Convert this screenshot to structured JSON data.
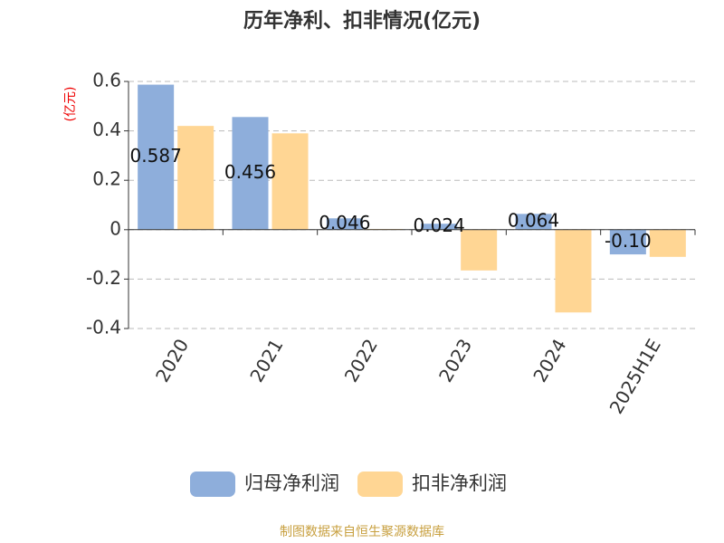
{
  "chart_data": {
    "type": "bar",
    "title": "历年净利、扣非情况(亿元)",
    "y_label": "(亿元)",
    "categories": [
      "2020",
      "2021",
      "2022",
      "2023",
      "2024",
      "2025H1E"
    ],
    "series": [
      {
        "name": "归母净利润",
        "color": "#8eaedb",
        "values": [
          0.587,
          0.456,
          0.046,
          0.024,
          0.064,
          -0.1
        ],
        "value_labels": [
          "0.587",
          "0.456",
          "0.046",
          "0.024",
          "0.064",
          "-0.10"
        ]
      },
      {
        "name": "扣非净利润",
        "color": "#ffd694",
        "values": [
          0.42,
          0.39,
          0.003,
          -0.165,
          -0.335,
          -0.11
        ]
      }
    ],
    "ylim": [
      -0.4,
      0.6
    ],
    "yticks": [
      0.6,
      0.4,
      0.2,
      0,
      -0.2,
      -0.4
    ],
    "grid": true,
    "legend": "bottom",
    "source": "制图数据来自恒生聚源数据库"
  }
}
